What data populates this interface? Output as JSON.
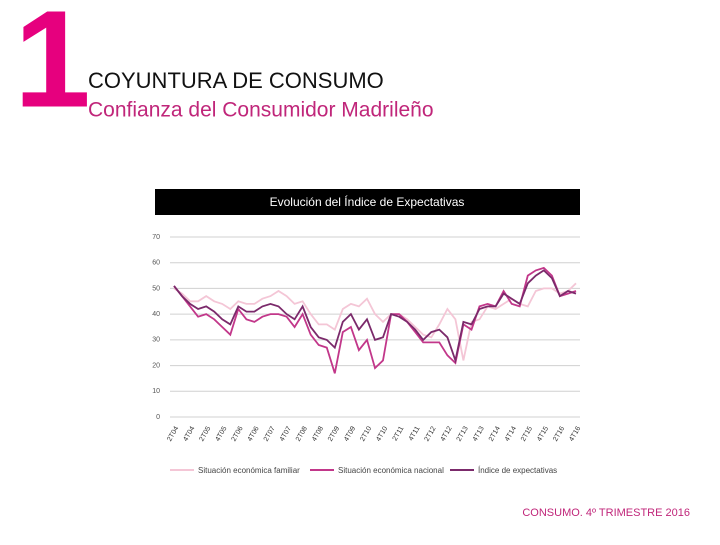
{
  "slide_number": "1",
  "heading": "COYUNTURA DE CONSUMO",
  "subheading": "Confianza del Consumidor Madrileño",
  "footer": "CONSUMO. 4º TRIMESTRE 2016",
  "chart_data": {
    "type": "line",
    "title": "Evolución del Índice de Expectativas",
    "categories": [
      "2T04",
      null,
      "4T04",
      null,
      "2T05",
      null,
      "4T05",
      null,
      "2T06",
      null,
      "4T06",
      null,
      "2T07",
      null,
      "4T07",
      null,
      "2T08",
      null,
      "4T08",
      null,
      "2T09",
      null,
      "4T09",
      null,
      "2T10",
      null,
      "4T10",
      null,
      "2T11",
      null,
      "4T11",
      null,
      "2T12",
      null,
      "4T12",
      null,
      "2T13",
      null,
      "4T13",
      null,
      "2T14",
      null,
      "4T14",
      null,
      "2T15",
      null,
      "4T15",
      null,
      "2T16",
      null,
      "4T16"
    ],
    "series": [
      {
        "name": "Situación económica familiar",
        "color": "#f4c6d6",
        "values": [
          50,
          48,
          45,
          45,
          47,
          45,
          44,
          42,
          45,
          44,
          44,
          46,
          47,
          49,
          47,
          44,
          45,
          40,
          36,
          36,
          34,
          42,
          44,
          43,
          46,
          40,
          37,
          40,
          40,
          38,
          35,
          32,
          31,
          36,
          42,
          38,
          22,
          37,
          38,
          43,
          42,
          44,
          46,
          44,
          43,
          49,
          50,
          50,
          48,
          49,
          52
        ]
      },
      {
        "name": "Situación económica nacional",
        "color": "#c2378a",
        "values": [
          51,
          47,
          43,
          39,
          40,
          38,
          35,
          32,
          42,
          38,
          37,
          39,
          40,
          40,
          39,
          35,
          40,
          32,
          28,
          27,
          17,
          33,
          35,
          26,
          30,
          19,
          22,
          40,
          40,
          37,
          33,
          29,
          29,
          29,
          24,
          21,
          36,
          34,
          43,
          44,
          43,
          49,
          44,
          43,
          55,
          57,
          58,
          55,
          47,
          48,
          49
        ]
      },
      {
        "name": "Índice de expectativas",
        "color": "#7b2a6b",
        "values": [
          51,
          47,
          44,
          42,
          43,
          41,
          38,
          36,
          43,
          41,
          41,
          43,
          44,
          43,
          40,
          38,
          43,
          35,
          31,
          30,
          27,
          37,
          40,
          34,
          38,
          30,
          31,
          40,
          39,
          37,
          34,
          30,
          33,
          34,
          31,
          22,
          37,
          36,
          42,
          43,
          43,
          48,
          46,
          44,
          52,
          55,
          57,
          54,
          47,
          49,
          48
        ]
      }
    ],
    "ylim": [
      0,
      70
    ],
    "yticks": [
      0,
      10,
      20,
      30,
      40,
      50,
      60,
      70
    ],
    "grid": true
  }
}
